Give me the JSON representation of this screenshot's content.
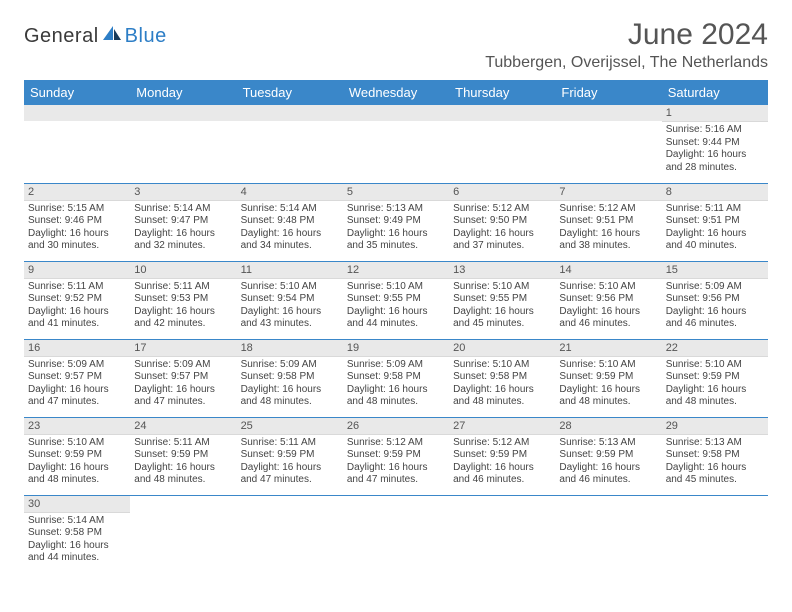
{
  "logo": {
    "general": "General",
    "blue": "Blue"
  },
  "title": "June 2024",
  "location": "Tubbergen, Overijssel, The Netherlands",
  "colors": {
    "header_bg": "#3a87c9",
    "header_fg": "#ffffff",
    "daynum_bg": "#e9e9e9",
    "row_border": "#3a87c9",
    "text": "#444444",
    "title": "#555555",
    "logo_blue": "#2d7ec6"
  },
  "typography": {
    "title_fontsize": 30,
    "location_fontsize": 16,
    "dayheader_fontsize": 13,
    "daynum_fontsize": 11,
    "info_fontsize": 10
  },
  "day_headers": [
    "Sunday",
    "Monday",
    "Tuesday",
    "Wednesday",
    "Thursday",
    "Friday",
    "Saturday"
  ],
  "weeks": [
    [
      null,
      null,
      null,
      null,
      null,
      null,
      {
        "n": "1",
        "sr": "5:16 AM",
        "ss": "9:44 PM",
        "dl": "16 hours and 28 minutes."
      }
    ],
    [
      {
        "n": "2",
        "sr": "5:15 AM",
        "ss": "9:46 PM",
        "dl": "16 hours and 30 minutes."
      },
      {
        "n": "3",
        "sr": "5:14 AM",
        "ss": "9:47 PM",
        "dl": "16 hours and 32 minutes."
      },
      {
        "n": "4",
        "sr": "5:14 AM",
        "ss": "9:48 PM",
        "dl": "16 hours and 34 minutes."
      },
      {
        "n": "5",
        "sr": "5:13 AM",
        "ss": "9:49 PM",
        "dl": "16 hours and 35 minutes."
      },
      {
        "n": "6",
        "sr": "5:12 AM",
        "ss": "9:50 PM",
        "dl": "16 hours and 37 minutes."
      },
      {
        "n": "7",
        "sr": "5:12 AM",
        "ss": "9:51 PM",
        "dl": "16 hours and 38 minutes."
      },
      {
        "n": "8",
        "sr": "5:11 AM",
        "ss": "9:51 PM",
        "dl": "16 hours and 40 minutes."
      }
    ],
    [
      {
        "n": "9",
        "sr": "5:11 AM",
        "ss": "9:52 PM",
        "dl": "16 hours and 41 minutes."
      },
      {
        "n": "10",
        "sr": "5:11 AM",
        "ss": "9:53 PM",
        "dl": "16 hours and 42 minutes."
      },
      {
        "n": "11",
        "sr": "5:10 AM",
        "ss": "9:54 PM",
        "dl": "16 hours and 43 minutes."
      },
      {
        "n": "12",
        "sr": "5:10 AM",
        "ss": "9:55 PM",
        "dl": "16 hours and 44 minutes."
      },
      {
        "n": "13",
        "sr": "5:10 AM",
        "ss": "9:55 PM",
        "dl": "16 hours and 45 minutes."
      },
      {
        "n": "14",
        "sr": "5:10 AM",
        "ss": "9:56 PM",
        "dl": "16 hours and 46 minutes."
      },
      {
        "n": "15",
        "sr": "5:09 AM",
        "ss": "9:56 PM",
        "dl": "16 hours and 46 minutes."
      }
    ],
    [
      {
        "n": "16",
        "sr": "5:09 AM",
        "ss": "9:57 PM",
        "dl": "16 hours and 47 minutes."
      },
      {
        "n": "17",
        "sr": "5:09 AM",
        "ss": "9:57 PM",
        "dl": "16 hours and 47 minutes."
      },
      {
        "n": "18",
        "sr": "5:09 AM",
        "ss": "9:58 PM",
        "dl": "16 hours and 48 minutes."
      },
      {
        "n": "19",
        "sr": "5:09 AM",
        "ss": "9:58 PM",
        "dl": "16 hours and 48 minutes."
      },
      {
        "n": "20",
        "sr": "5:10 AM",
        "ss": "9:58 PM",
        "dl": "16 hours and 48 minutes."
      },
      {
        "n": "21",
        "sr": "5:10 AM",
        "ss": "9:59 PM",
        "dl": "16 hours and 48 minutes."
      },
      {
        "n": "22",
        "sr": "5:10 AM",
        "ss": "9:59 PM",
        "dl": "16 hours and 48 minutes."
      }
    ],
    [
      {
        "n": "23",
        "sr": "5:10 AM",
        "ss": "9:59 PM",
        "dl": "16 hours and 48 minutes."
      },
      {
        "n": "24",
        "sr": "5:11 AM",
        "ss": "9:59 PM",
        "dl": "16 hours and 48 minutes."
      },
      {
        "n": "25",
        "sr": "5:11 AM",
        "ss": "9:59 PM",
        "dl": "16 hours and 47 minutes."
      },
      {
        "n": "26",
        "sr": "5:12 AM",
        "ss": "9:59 PM",
        "dl": "16 hours and 47 minutes."
      },
      {
        "n": "27",
        "sr": "5:12 AM",
        "ss": "9:59 PM",
        "dl": "16 hours and 46 minutes."
      },
      {
        "n": "28",
        "sr": "5:13 AM",
        "ss": "9:59 PM",
        "dl": "16 hours and 46 minutes."
      },
      {
        "n": "29",
        "sr": "5:13 AM",
        "ss": "9:58 PM",
        "dl": "16 hours and 45 minutes."
      }
    ],
    [
      {
        "n": "30",
        "sr": "5:14 AM",
        "ss": "9:58 PM",
        "dl": "16 hours and 44 minutes."
      },
      null,
      null,
      null,
      null,
      null,
      null
    ]
  ],
  "labels": {
    "sunrise": "Sunrise:",
    "sunset": "Sunset:",
    "daylight": "Daylight:"
  }
}
